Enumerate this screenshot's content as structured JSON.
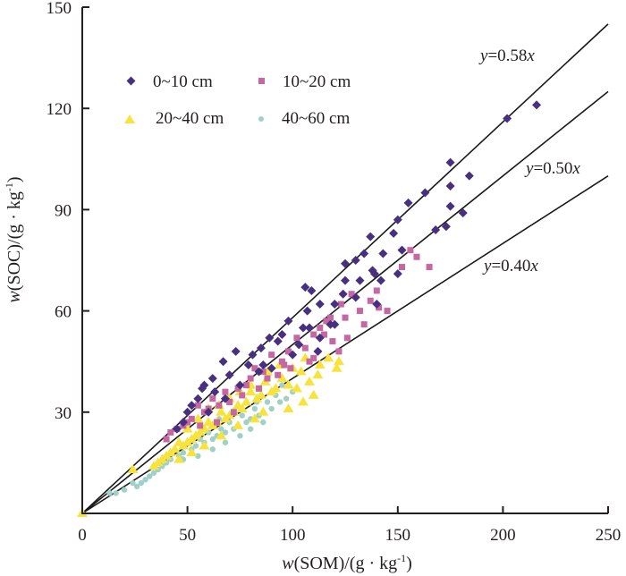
{
  "chart_data": {
    "type": "scatter",
    "title": "",
    "xlabel": "w(SOM)/(g · kg-1)",
    "xlabel_parts": {
      "italic": "w",
      "main": "(SOM)/(g · kg",
      "sup": "-1",
      "end": ")"
    },
    "ylabel": "w(SOC)/(g · kg-1)",
    "ylabel_parts": {
      "italic": "w",
      "main": "(SOC)/(g · kg",
      "sup": "-1",
      "end": ")"
    },
    "xlim": [
      0,
      250
    ],
    "ylim": [
      0,
      150
    ],
    "xticks": [
      0,
      50,
      100,
      150,
      200,
      250
    ],
    "yticks": [
      30,
      60,
      90,
      120,
      150
    ],
    "origin_label": "0",
    "grid": false,
    "legend_placement": "top-left",
    "reference_lines": [
      {
        "slope": 0.58,
        "label_y": "y",
        "label_rest": "=0.58",
        "label_x": "x"
      },
      {
        "slope": 0.5,
        "label_y": "y",
        "label_rest": "=0.50",
        "label_x": "x"
      },
      {
        "slope": 0.4,
        "label_y": "y",
        "label_rest": "=0.40",
        "label_x": "x"
      }
    ],
    "series": [
      {
        "name": "0~10 cm",
        "marker": "diamond",
        "color": "#46307f",
        "points": [
          [
            216,
            121
          ],
          [
            202,
            117
          ],
          [
            175,
            104
          ],
          [
            184,
            100
          ],
          [
            175,
            97
          ],
          [
            163,
            95
          ],
          [
            155,
            92
          ],
          [
            181,
            89
          ],
          [
            173,
            85
          ],
          [
            168,
            84
          ],
          [
            175,
            91
          ],
          [
            150,
            87
          ],
          [
            148,
            83
          ],
          [
            152,
            78
          ],
          [
            137,
            82
          ],
          [
            143,
            77
          ],
          [
            134,
            77
          ],
          [
            130,
            75
          ],
          [
            125,
            74
          ],
          [
            138,
            72
          ],
          [
            125,
            69
          ],
          [
            139,
            71
          ],
          [
            150,
            71
          ],
          [
            132,
            69
          ],
          [
            130,
            64
          ],
          [
            124,
            65
          ],
          [
            120,
            62
          ],
          [
            113,
            62
          ],
          [
            107,
            60
          ],
          [
            109,
            66
          ],
          [
            106,
            67
          ],
          [
            140,
            62
          ],
          [
            142,
            69
          ],
          [
            118,
            56
          ],
          [
            105,
            55
          ],
          [
            120,
            56
          ],
          [
            108,
            55
          ],
          [
            113,
            52
          ],
          [
            112,
            48
          ],
          [
            98,
            57
          ],
          [
            95,
            53
          ],
          [
            103,
            50
          ],
          [
            100,
            47
          ],
          [
            93,
            51
          ],
          [
            89,
            52
          ],
          [
            85,
            49
          ],
          [
            81,
            47
          ],
          [
            86,
            44
          ],
          [
            90,
            43
          ],
          [
            79,
            44
          ],
          [
            84,
            42
          ],
          [
            73,
            48
          ],
          [
            67,
            45
          ],
          [
            70,
            41
          ],
          [
            75,
            38
          ],
          [
            62,
            40
          ],
          [
            58,
            38
          ],
          [
            55,
            34
          ],
          [
            68,
            34
          ],
          [
            52,
            32
          ],
          [
            50,
            30
          ],
          [
            60,
            30
          ],
          [
            48,
            27
          ],
          [
            45,
            25
          ],
          [
            57,
            37
          ],
          [
            63,
            36
          ]
        ]
      },
      {
        "name": "10~20 cm",
        "marker": "square",
        "color": "#c567a3",
        "points": [
          [
            156,
            78
          ],
          [
            159,
            76
          ],
          [
            165,
            73
          ],
          [
            152,
            73
          ],
          [
            140,
            66
          ],
          [
            137,
            63
          ],
          [
            141,
            61
          ],
          [
            132,
            60
          ],
          [
            123,
            62
          ],
          [
            128,
            65
          ],
          [
            125,
            58
          ],
          [
            118,
            58
          ],
          [
            113,
            55
          ],
          [
            119,
            51
          ],
          [
            115,
            53
          ],
          [
            110,
            53
          ],
          [
            116,
            57
          ],
          [
            106,
            49
          ],
          [
            102,
            52
          ],
          [
            98,
            48
          ],
          [
            95,
            45
          ],
          [
            96,
            44
          ],
          [
            90,
            47
          ],
          [
            86,
            42
          ],
          [
            82,
            43
          ],
          [
            80,
            40
          ],
          [
            78,
            38
          ],
          [
            76,
            35
          ],
          [
            74,
            37
          ],
          [
            70,
            33
          ],
          [
            68,
            36
          ],
          [
            65,
            32
          ],
          [
            62,
            34
          ],
          [
            60,
            31
          ],
          [
            58,
            30
          ],
          [
            55,
            32
          ],
          [
            52,
            28
          ],
          [
            50,
            27
          ],
          [
            48,
            26
          ],
          [
            45,
            25
          ],
          [
            42,
            24
          ],
          [
            40,
            22
          ],
          [
            72,
            30
          ],
          [
            64,
            27
          ],
          [
            56,
            26
          ],
          [
            88,
            40
          ],
          [
            84,
            37
          ],
          [
            99,
            43
          ],
          [
            108,
            45
          ],
          [
            122,
            48
          ],
          [
            126,
            52
          ],
          [
            134,
            56
          ],
          [
            145,
            60
          ],
          [
            110,
            46
          ],
          [
            93,
            41
          ]
        ]
      },
      {
        "name": "20~40 cm",
        "marker": "triangle",
        "color": "#f8e33c",
        "points": [
          [
            122,
            45
          ],
          [
            117,
            46
          ],
          [
            121,
            43
          ],
          [
            113,
            44
          ],
          [
            112,
            41
          ],
          [
            106,
            46
          ],
          [
            104,
            42
          ],
          [
            108,
            39
          ],
          [
            100,
            43
          ],
          [
            98,
            38
          ],
          [
            95,
            40
          ],
          [
            92,
            37
          ],
          [
            90,
            36
          ],
          [
            87,
            39
          ],
          [
            85,
            35
          ],
          [
            83,
            34
          ],
          [
            80,
            36
          ],
          [
            78,
            33
          ],
          [
            76,
            31
          ],
          [
            74,
            32
          ],
          [
            72,
            30
          ],
          [
            70,
            29
          ],
          [
            68,
            28
          ],
          [
            66,
            30
          ],
          [
            64,
            27
          ],
          [
            62,
            26
          ],
          [
            60,
            27
          ],
          [
            58,
            25
          ],
          [
            56,
            24
          ],
          [
            54,
            23
          ],
          [
            52,
            22
          ],
          [
            50,
            21
          ],
          [
            48,
            20
          ],
          [
            46,
            21
          ],
          [
            44,
            19
          ],
          [
            42,
            18
          ],
          [
            40,
            17
          ],
          [
            38,
            16
          ],
          [
            36,
            15
          ],
          [
            34,
            14
          ],
          [
            50,
            25
          ],
          [
            55,
            28
          ],
          [
            60,
            31
          ],
          [
            65,
            32
          ],
          [
            70,
            34
          ],
          [
            75,
            36
          ],
          [
            80,
            38
          ],
          [
            88,
            42
          ],
          [
            94,
            44
          ],
          [
            102,
            37
          ],
          [
            110,
            35
          ],
          [
            105,
            33
          ],
          [
            98,
            31
          ],
          [
            86,
            30
          ],
          [
            82,
            28
          ],
          [
            74,
            26
          ],
          [
            66,
            23
          ],
          [
            58,
            20
          ],
          [
            52,
            18
          ],
          [
            46,
            16
          ],
          [
            24,
            13
          ],
          [
            0,
            0
          ]
        ]
      },
      {
        "name": "40~60 cm",
        "marker": "circle",
        "color": "#9fd1c9",
        "points": [
          [
            95,
            38
          ],
          [
            92,
            35
          ],
          [
            94,
            33
          ],
          [
            90,
            31
          ],
          [
            88,
            33
          ],
          [
            86,
            30
          ],
          [
            84,
            29
          ],
          [
            82,
            31
          ],
          [
            80,
            28
          ],
          [
            78,
            27
          ],
          [
            76,
            29
          ],
          [
            74,
            26
          ],
          [
            72,
            25
          ],
          [
            70,
            27
          ],
          [
            68,
            24
          ],
          [
            66,
            25
          ],
          [
            64,
            23
          ],
          [
            62,
            22
          ],
          [
            60,
            24
          ],
          [
            58,
            21
          ],
          [
            56,
            22
          ],
          [
            54,
            20
          ],
          [
            52,
            19
          ],
          [
            50,
            21
          ],
          [
            48,
            18
          ],
          [
            46,
            17
          ],
          [
            44,
            19
          ],
          [
            42,
            16
          ],
          [
            40,
            15
          ],
          [
            38,
            14
          ],
          [
            36,
            13
          ],
          [
            34,
            12
          ],
          [
            32,
            11
          ],
          [
            30,
            10
          ],
          [
            28,
            9
          ],
          [
            26,
            8
          ],
          [
            24,
            9
          ],
          [
            20,
            7
          ],
          [
            16,
            6
          ],
          [
            13,
            6
          ],
          [
            48,
            16
          ],
          [
            55,
            17
          ],
          [
            62,
            19
          ],
          [
            68,
            21
          ],
          [
            75,
            23
          ],
          [
            80,
            25
          ],
          [
            86,
            27
          ],
          [
            97,
            34
          ],
          [
            100,
            36
          ],
          [
            83,
            33
          ],
          [
            72,
            30
          ],
          [
            65,
            28
          ]
        ]
      }
    ]
  }
}
